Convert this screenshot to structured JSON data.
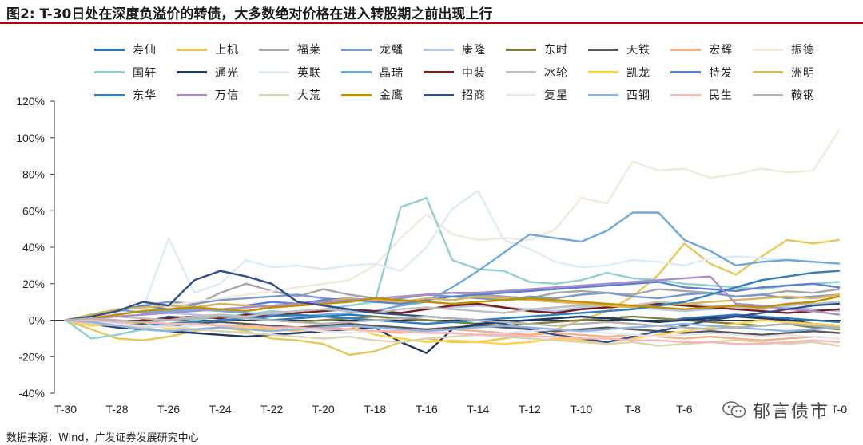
{
  "title": "图2:  T-30日处在深度负溢价的转债，大多数绝对价格在进入转股期之前出现上行",
  "source": "数据来源：Wind，广发证券发展研究中心",
  "watermark": "郁言债市",
  "chart_data": {
    "type": "line",
    "title": "图2:  T-30日处在深度负溢价的转债，大多数绝对价格在进入转股期之前出现上行",
    "xlabel": "",
    "ylabel": "",
    "x": [
      "T-30",
      "T-29",
      "T-28",
      "T-27",
      "T-26",
      "T-25",
      "T-24",
      "T-23",
      "T-22",
      "T-21",
      "T-20",
      "T-19",
      "T-18",
      "T-17",
      "T-16",
      "T-15",
      "T-14",
      "T-13",
      "T-12",
      "T-11",
      "T-10",
      "T-9",
      "T-8",
      "T-7",
      "T-6",
      "T-5",
      "T-4",
      "T-3",
      "T-2",
      "T-1",
      "T-0"
    ],
    "x_tick_labels": [
      "T-30",
      "T-28",
      "T-26",
      "T-24",
      "T-22",
      "T-20",
      "T-18",
      "T-16",
      "T-14",
      "T-12",
      "T-10",
      "T-8",
      "T-6",
      "T-4",
      "T-2",
      "T-0"
    ],
    "y_ticks": [
      -40,
      -20,
      0,
      20,
      40,
      60,
      80,
      100,
      120
    ],
    "y_tick_labels": [
      "-40%",
      "-20%",
      "0%",
      "20%",
      "40%",
      "60%",
      "80%",
      "100%",
      "120%"
    ],
    "ylim": [
      -40,
      120
    ],
    "series": [
      {
        "name": "寿仙",
        "color": "#2e75b6",
        "values": [
          0,
          -2,
          -3,
          -1,
          2,
          1,
          3,
          2,
          0,
          1,
          2,
          3,
          2,
          1,
          0,
          -1,
          -2,
          -1,
          0,
          1,
          2,
          1,
          0,
          -1,
          1,
          2,
          3,
          2,
          1,
          0,
          -1
        ]
      },
      {
        "name": "上机",
        "color": "#e8c75a",
        "values": [
          0,
          -5,
          -10,
          -11,
          -9,
          -6,
          -4,
          -6,
          -10,
          -11,
          -13,
          -19,
          -17,
          -12,
          -10,
          -12,
          -12,
          -10,
          -8,
          -5,
          0,
          5,
          13,
          25,
          42,
          31,
          25,
          35,
          44,
          42,
          44
        ]
      },
      {
        "name": "福莱",
        "color": "#a6a6a6",
        "values": [
          0,
          2,
          3,
          5,
          6,
          8,
          15,
          20,
          16,
          13,
          17,
          14,
          12,
          13,
          14,
          15,
          14,
          13,
          12,
          15,
          16,
          15,
          14,
          17,
          16,
          15,
          13,
          14,
          16,
          15,
          17
        ]
      },
      {
        "name": "龙蟠",
        "color": "#7d99c7",
        "values": [
          0,
          3,
          5,
          8,
          10,
          9,
          11,
          12,
          13,
          14,
          12,
          11,
          10,
          12,
          14,
          13,
          12,
          11,
          13,
          12,
          14,
          15,
          13,
          12,
          14,
          15,
          13,
          14,
          12,
          13,
          14
        ]
      },
      {
        "name": "康隆",
        "color": "#b4c7e7",
        "values": [
          0,
          1,
          2,
          3,
          4,
          3,
          2,
          1,
          3,
          4,
          5,
          6,
          5,
          4,
          6,
          7,
          8,
          7,
          6,
          5,
          7,
          8,
          7,
          6,
          5,
          6,
          7,
          8,
          7,
          6,
          5
        ]
      },
      {
        "name": "东时",
        "color": "#7f7f3f",
        "values": [
          0,
          -1,
          -2,
          -1,
          0,
          1,
          2,
          1,
          0,
          -1,
          0,
          1,
          2,
          1,
          0,
          -1,
          -2,
          -3,
          -2,
          -1,
          0,
          1,
          2,
          1,
          0,
          -1,
          -2,
          -3,
          -2,
          -4,
          -5
        ]
      },
      {
        "name": "天铁",
        "color": "#595959",
        "values": [
          0,
          0,
          -1,
          -2,
          -3,
          -2,
          -1,
          -2,
          -3,
          -4,
          -3,
          -2,
          -3,
          -4,
          -5,
          -4,
          -3,
          -4,
          -5,
          -6,
          -5,
          -4,
          -5,
          -6,
          -7,
          -6,
          -7,
          -8,
          -7,
          -6,
          -7
        ]
      },
      {
        "name": "宏辉",
        "color": "#f4b183",
        "values": [
          0,
          -1,
          -2,
          -3,
          -4,
          -5,
          -4,
          -5,
          -6,
          -5,
          -4,
          -5,
          -6,
          -7,
          -6,
          -5,
          -6,
          -7,
          -8,
          -7,
          -8,
          -9,
          -8,
          -9,
          -10,
          -9,
          -10,
          -11,
          -10,
          -9,
          -10
        ]
      },
      {
        "name": "振德",
        "color": "#f2e9dc",
        "values": [
          0,
          2,
          4,
          6,
          8,
          10,
          12,
          14,
          16,
          18,
          20,
          22,
          30,
          45,
          58,
          47,
          44,
          45,
          44,
          50,
          67,
          64,
          87,
          82,
          83,
          78,
          80,
          83,
          81,
          82,
          104
        ]
      },
      {
        "name": "国轩",
        "color": "#92d0cf",
        "values": [
          0,
          -10,
          -8,
          -5,
          -2,
          0,
          2,
          3,
          5,
          4,
          6,
          8,
          10,
          62,
          67,
          33,
          28,
          27,
          21,
          20,
          22,
          26,
          23,
          22,
          20,
          19,
          18,
          17,
          19,
          20,
          21
        ]
      },
      {
        "name": "通光",
        "color": "#1f3864",
        "values": [
          0,
          -2,
          -4,
          -5,
          -6,
          -7,
          -8,
          -9,
          -8,
          -7,
          -6,
          -5,
          -4,
          -12,
          -18,
          -5,
          -2,
          -1,
          0,
          1,
          2,
          1,
          0,
          -1,
          0,
          1,
          2,
          1,
          0,
          -2,
          -3
        ]
      },
      {
        "name": "英联",
        "color": "#ddebf7",
        "values": [
          0,
          2,
          4,
          6,
          45,
          15,
          20,
          33,
          29,
          30,
          28,
          30,
          31,
          27,
          40,
          61,
          71,
          44,
          39,
          32,
          29,
          30,
          33,
          32,
          30,
          34,
          35,
          34,
          33,
          32,
          31
        ]
      },
      {
        "name": "晶瑞",
        "color": "#6fa8dc",
        "values": [
          0,
          3,
          6,
          4,
          5,
          6,
          5,
          4,
          3,
          2,
          3,
          4,
          5,
          8,
          10,
          18,
          27,
          37,
          47,
          45,
          43,
          49,
          59,
          59,
          44,
          38,
          30,
          32,
          33,
          32,
          31
        ]
      },
      {
        "name": "中装",
        "color": "#7b1c1c",
        "values": [
          0,
          -1,
          -2,
          0,
          1,
          2,
          1,
          3,
          2,
          4,
          5,
          6,
          5,
          4,
          6,
          8,
          9,
          7,
          5,
          4,
          6,
          7,
          8,
          9,
          8,
          7,
          6,
          5,
          4,
          5,
          6
        ]
      },
      {
        "name": "冰轮",
        "color": "#bfbfbf",
        "values": [
          0,
          1,
          2,
          1,
          0,
          2,
          3,
          2,
          4,
          5,
          6,
          5,
          4,
          6,
          7,
          6,
          5,
          4,
          6,
          7,
          8,
          9,
          8,
          10,
          9,
          8,
          7,
          6,
          8,
          9,
          10
        ]
      },
      {
        "name": "凯龙",
        "color": "#ffd24d",
        "values": [
          0,
          -3,
          -2,
          -1,
          -5,
          -2,
          -3,
          -4,
          -5,
          -6,
          -4,
          -3,
          -8,
          -10,
          -12,
          -11,
          -12,
          -13,
          -12,
          -10,
          -11,
          -12,
          -10,
          -8,
          -6,
          -4,
          -2,
          0,
          -1,
          -2,
          -3
        ]
      },
      {
        "name": "特发",
        "color": "#5b7fd4",
        "values": [
          0,
          2,
          5,
          8,
          6,
          7,
          9,
          8,
          10,
          9,
          11,
          12,
          10,
          9,
          11,
          13,
          14,
          15,
          16,
          17,
          18,
          19,
          20,
          21,
          18,
          17,
          16,
          18,
          19,
          20,
          18
        ]
      },
      {
        "name": "洲明",
        "color": "#d6b656",
        "values": [
          0,
          3,
          6,
          7,
          8,
          7,
          9,
          8,
          7,
          8,
          10,
          12,
          11,
          10,
          12,
          11,
          13,
          12,
          11,
          10,
          9,
          8,
          7,
          8,
          9,
          10,
          11,
          12,
          13,
          12,
          14
        ]
      },
      {
        "name": "东华",
        "color": "#2f7fc1",
        "values": [
          0,
          -1,
          -2,
          -3,
          -2,
          -1,
          0,
          1,
          2,
          3,
          2,
          1,
          0,
          -1,
          -2,
          -1,
          0,
          1,
          2,
          3,
          4,
          5,
          6,
          8,
          10,
          14,
          18,
          22,
          24,
          26,
          27
        ]
      },
      {
        "name": "万信",
        "color": "#a98fc8",
        "values": [
          0,
          1,
          2,
          3,
          4,
          5,
          6,
          7,
          8,
          9,
          10,
          11,
          12,
          13,
          14,
          15,
          15,
          16,
          17,
          18,
          19,
          20,
          21,
          22,
          23,
          24,
          9,
          8,
          6,
          5,
          3
        ]
      },
      {
        "name": "大荒",
        "color": "#d9d4b4",
        "values": [
          0,
          -2,
          -3,
          -4,
          -3,
          -5,
          -6,
          -7,
          -8,
          -9,
          -10,
          -9,
          -11,
          -12,
          -10,
          -9,
          -8,
          -9,
          -10,
          -11,
          -12,
          -13,
          -12,
          -14,
          -13,
          -12,
          -11,
          -12,
          -13,
          -12,
          -14
        ]
      },
      {
        "name": "金鹰",
        "color": "#bf9000",
        "values": [
          0,
          1,
          3,
          5,
          6,
          7,
          6,
          5,
          7,
          8,
          9,
          10,
          12,
          11,
          10,
          9,
          10,
          11,
          12,
          11,
          10,
          9,
          8,
          7,
          6,
          7,
          8,
          7,
          9,
          10,
          13
        ]
      },
      {
        "name": "招商",
        "color": "#2f4d8f",
        "values": [
          0,
          2,
          5,
          10,
          8,
          22,
          27,
          24,
          20,
          10,
          8,
          6,
          4,
          3,
          2,
          1,
          0,
          -2,
          -5,
          -8,
          -10,
          -12,
          -9,
          -6,
          -3,
          0,
          2,
          4,
          6,
          8,
          9
        ]
      },
      {
        "name": "复星",
        "color": "#e7e6f0",
        "values": [
          0,
          -1,
          -2,
          -3,
          -4,
          -3,
          -2,
          -3,
          -4,
          -5,
          -6,
          -7,
          -6,
          -5,
          -6,
          -7,
          -8,
          -7,
          -6,
          -5,
          -6,
          -7,
          -8,
          -9,
          -8,
          -7,
          -8,
          -9,
          -8,
          -9,
          -10
        ]
      },
      {
        "name": "西钢",
        "color": "#8eb4e3",
        "values": [
          0,
          -1,
          -3,
          -5,
          -6,
          -5,
          -4,
          -5,
          -6,
          -5,
          -4,
          -3,
          -4,
          -5,
          -6,
          -5,
          -4,
          -3,
          -4,
          -5,
          -6,
          -5,
          -4,
          -3,
          -2,
          -3,
          -4,
          -5,
          -6,
          -5,
          -4
        ]
      },
      {
        "name": "民生",
        "color": "#f4b8b8",
        "values": [
          0,
          0,
          -1,
          -1,
          -2,
          -2,
          -3,
          -3,
          -4,
          -4,
          -5,
          -5,
          -6,
          -6,
          -7,
          -7,
          -8,
          -8,
          -9,
          -9,
          -10,
          -10,
          -11,
          -11,
          -12,
          -12,
          -13,
          -13,
          -12,
          -11,
          -12
        ]
      },
      {
        "name": "鞍钢",
        "color": "#b3b3b3",
        "values": [
          0,
          1,
          0,
          -1,
          0,
          1,
          2,
          1,
          0,
          -1,
          -2,
          -1,
          0,
          1,
          2,
          1,
          0,
          -1,
          -2,
          -3,
          -2,
          -1,
          -2,
          -3,
          -4,
          -5,
          -4,
          -3,
          -2,
          -3,
          -4
        ]
      }
    ]
  }
}
